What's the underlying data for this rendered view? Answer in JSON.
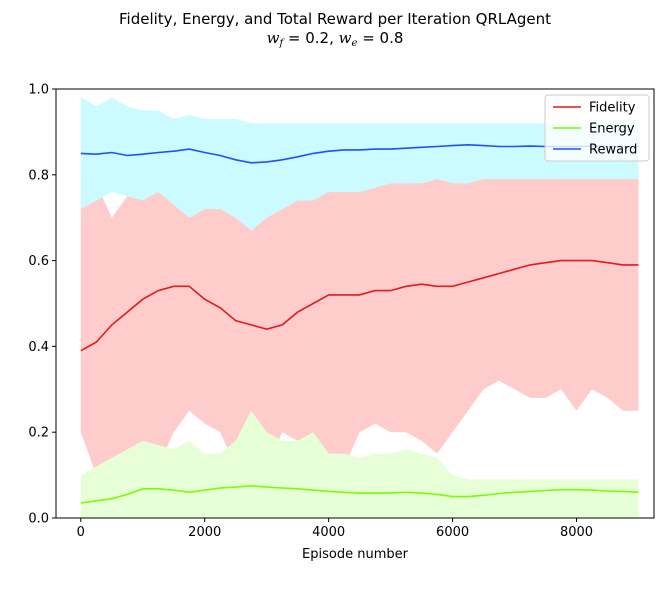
{
  "chart_data": {
    "type": "line",
    "title": "Fidelity, Energy, and Total Reward per Iteration QRLAgent",
    "subtitle": {
      "w_f_label": "w",
      "w_f_sub": "f",
      "w_f_value": "0.2",
      "w_e_label": "w",
      "w_e_sub": "e",
      "w_e_value": "0.8"
    },
    "xlabel": "Episode number",
    "ylabel": "",
    "xlim": [
      -400,
      9250
    ],
    "ylim": [
      0,
      1.0
    ],
    "x_ticks": [
      0,
      2000,
      4000,
      6000,
      8000
    ],
    "x_tick_labels": [
      "0",
      "2000",
      "4000",
      "6000",
      "8000"
    ],
    "y_ticks": [
      0,
      0.2,
      0.4,
      0.6,
      0.8,
      1.0
    ],
    "y_tick_labels": [
      "0.0",
      "0.2",
      "0.4",
      "0.6",
      "0.8",
      "1.0"
    ],
    "grid": false,
    "legend_position": "top-right",
    "x": [
      0,
      250,
      500,
      750,
      1000,
      1250,
      1500,
      1750,
      2000,
      2250,
      2500,
      2750,
      3000,
      3250,
      3500,
      3750,
      4000,
      4250,
      4500,
      4750,
      5000,
      5250,
      5500,
      5750,
      6000,
      6250,
      6500,
      6750,
      7000,
      7250,
      7500,
      7750,
      8000,
      8250,
      8500,
      8750,
      9000
    ],
    "series": [
      {
        "name": "Fidelity",
        "color": "#e41a1c",
        "band_color": "#ffcccc",
        "values": [
          0.39,
          0.41,
          0.45,
          0.48,
          0.51,
          0.53,
          0.54,
          0.54,
          0.51,
          0.49,
          0.46,
          0.45,
          0.44,
          0.45,
          0.48,
          0.5,
          0.52,
          0.52,
          0.52,
          0.53,
          0.53,
          0.54,
          0.545,
          0.54,
          0.54,
          0.55,
          0.56,
          0.57,
          0.58,
          0.59,
          0.595,
          0.6,
          0.6,
          0.6,
          0.595,
          0.59,
          0.59
        ],
        "lower": [
          0.2,
          0.1,
          0.05,
          0.1,
          0.15,
          0.12,
          0.2,
          0.25,
          0.22,
          0.2,
          0.12,
          0.1,
          0.12,
          0.2,
          0.18,
          0.1,
          0.08,
          0.12,
          0.2,
          0.22,
          0.2,
          0.2,
          0.18,
          0.15,
          0.2,
          0.25,
          0.3,
          0.32,
          0.3,
          0.28,
          0.28,
          0.3,
          0.25,
          0.3,
          0.28,
          0.25,
          0.25
        ],
        "upper": [
          0.8,
          0.78,
          0.7,
          0.75,
          0.8,
          0.82,
          0.82,
          0.82,
          0.8,
          0.8,
          0.82,
          0.75,
          0.8,
          0.82,
          0.8,
          0.82,
          0.82,
          0.82,
          0.82,
          0.82,
          0.82,
          0.82,
          0.82,
          0.82,
          0.82,
          0.82,
          0.82,
          0.82,
          0.82,
          0.82,
          0.82,
          0.82,
          0.82,
          0.82,
          0.82,
          0.8,
          0.8
        ]
      },
      {
        "name": "Energy",
        "color": "#7cfc00",
        "band_color": "#e6ffd6",
        "values": [
          0.035,
          0.04,
          0.045,
          0.055,
          0.068,
          0.068,
          0.065,
          0.06,
          0.065,
          0.07,
          0.072,
          0.075,
          0.072,
          0.07,
          0.068,
          0.065,
          0.062,
          0.06,
          0.058,
          0.058,
          0.058,
          0.06,
          0.058,
          0.055,
          0.05,
          0.05,
          0.053,
          0.057,
          0.06,
          0.062,
          0.064,
          0.066,
          0.066,
          0.065,
          0.063,
          0.062,
          0.06
        ],
        "lower": [
          0.0,
          0.0,
          0.0,
          0.0,
          0.0,
          0.0,
          0.0,
          0.0,
          0.0,
          0.0,
          0.0,
          0.0,
          0.0,
          0.0,
          0.0,
          0.0,
          0.0,
          0.0,
          0.0,
          0.0,
          0.0,
          0.0,
          0.0,
          0.0,
          0.0,
          0.0,
          0.0,
          0.0,
          0.0,
          0.0,
          0.0,
          0.0,
          0.0,
          0.0,
          0.0,
          0.0,
          0.0
        ],
        "upper": [
          0.1,
          0.12,
          0.14,
          0.16,
          0.18,
          0.17,
          0.16,
          0.18,
          0.15,
          0.15,
          0.18,
          0.25,
          0.2,
          0.18,
          0.18,
          0.2,
          0.15,
          0.15,
          0.14,
          0.15,
          0.15,
          0.16,
          0.15,
          0.14,
          0.1,
          0.09,
          0.09,
          0.09,
          0.09,
          0.09,
          0.09,
          0.09,
          0.09,
          0.09,
          0.09,
          0.09,
          0.09
        ]
      },
      {
        "name": "Reward",
        "color": "#1f4fff",
        "band_color": "#ccfbff",
        "values": [
          0.85,
          0.848,
          0.852,
          0.845,
          0.848,
          0.852,
          0.855,
          0.86,
          0.852,
          0.845,
          0.835,
          0.828,
          0.83,
          0.835,
          0.842,
          0.85,
          0.855,
          0.858,
          0.858,
          0.86,
          0.86,
          0.862,
          0.864,
          0.866,
          0.868,
          0.87,
          0.868,
          0.866,
          0.866,
          0.867,
          0.866,
          0.866,
          0.866,
          0.867,
          0.866,
          0.866,
          0.866
        ],
        "lower": [
          0.72,
          0.74,
          0.76,
          0.75,
          0.74,
          0.76,
          0.73,
          0.7,
          0.72,
          0.72,
          0.7,
          0.67,
          0.7,
          0.72,
          0.74,
          0.74,
          0.76,
          0.76,
          0.76,
          0.77,
          0.78,
          0.78,
          0.78,
          0.79,
          0.78,
          0.78,
          0.79,
          0.79,
          0.79,
          0.79,
          0.79,
          0.79,
          0.79,
          0.79,
          0.79,
          0.79,
          0.79
        ],
        "upper": [
          0.98,
          0.96,
          0.98,
          0.96,
          0.95,
          0.95,
          0.93,
          0.94,
          0.93,
          0.93,
          0.93,
          0.92,
          0.92,
          0.92,
          0.92,
          0.92,
          0.92,
          0.92,
          0.92,
          0.92,
          0.92,
          0.92,
          0.92,
          0.92,
          0.92,
          0.92,
          0.92,
          0.92,
          0.92,
          0.92,
          0.92,
          0.92,
          0.92,
          0.92,
          0.92,
          0.92,
          0.92
        ]
      }
    ]
  }
}
